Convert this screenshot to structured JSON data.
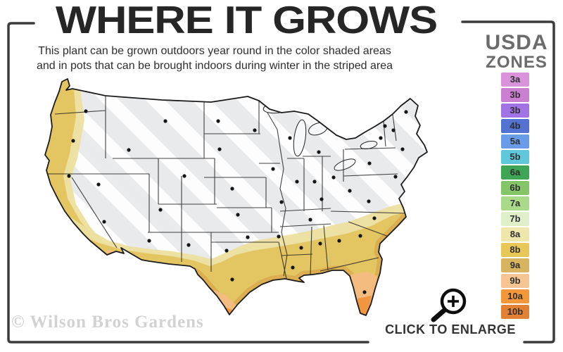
{
  "header": {
    "title": "WHERE IT GROWS",
    "subtitle_line1": "This plant can be grown outdoors year round in the color shaded areas",
    "subtitle_line2": "and in pots that can be brought indoors during winter in the striped area"
  },
  "legend": {
    "title_line1": "USDA",
    "title_line2": "ZONES",
    "zones": [
      {
        "label": "3a",
        "color": "#d993da"
      },
      {
        "label": "3b",
        "color": "#cb7fd1"
      },
      {
        "label": "3b",
        "color": "#a273e4"
      },
      {
        "label": "4b",
        "color": "#5273d2"
      },
      {
        "label": "5a",
        "color": "#689ce9"
      },
      {
        "label": "5b",
        "color": "#5ec7da"
      },
      {
        "label": "6a",
        "color": "#3da553"
      },
      {
        "label": "6b",
        "color": "#83c567"
      },
      {
        "label": "7a",
        "color": "#abd98a"
      },
      {
        "label": "7b",
        "color": "#dfefca"
      },
      {
        "label": "8a",
        "color": "#efe6ac"
      },
      {
        "label": "8b",
        "color": "#e9c757"
      },
      {
        "label": "9a",
        "color": "#d7b45f"
      },
      {
        "label": "9b",
        "color": "#f6c592"
      },
      {
        "label": "10a",
        "color": "#f3973b"
      },
      {
        "label": "10b",
        "color": "#e28134"
      }
    ]
  },
  "map": {
    "kind": "usda-hardiness-zone-map-continental-us",
    "base_color": "#e8eaec",
    "stripe_color": "#ffffff",
    "outline_color": "#1b1b1b",
    "state_line_color": "#222222",
    "zone_colors": {
      "outer_yellow": "#ecdf9e",
      "gold": "#e3c45f",
      "coastal_mustard": "#d8ab50",
      "peach": "#f5bc82",
      "orange": "#f0923c"
    },
    "colored_regions_note": "Pacific coast (WA/OR/CA) and southern band from southern CA/AZ/NM through TX, Gulf states, FL and the Atlantic coastal plain up to NC are color shaded; Florida tip and far south TX/Yuma are orange; remaining interior/northern states are gray with white diagonal stripes and black state-center dots"
  },
  "watermark": {
    "text": "© Wilson Bros Gardens"
  },
  "cta": {
    "label": "CLICK TO ENLARGE",
    "icon": "magnifier-plus-icon"
  },
  "decor": {
    "frame_color": "#3b3b3b"
  }
}
